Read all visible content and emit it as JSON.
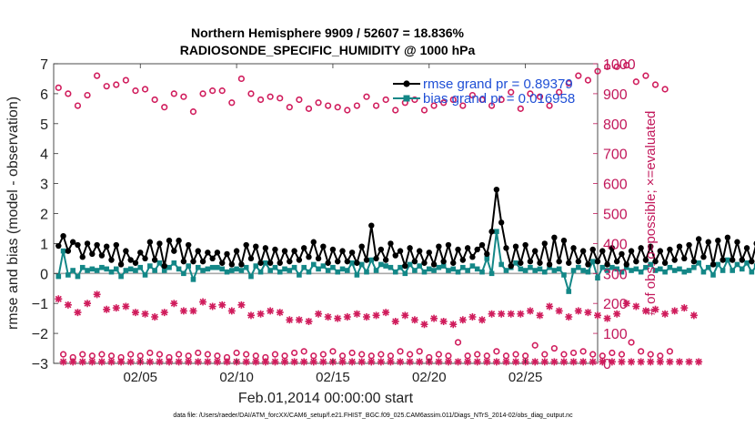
{
  "chart_data": {
    "type": "line",
    "title": "Northern Hemisphere 9909 / 52607 = 18.836%",
    "subtitle": "RADIOSONDE_SPECIFIC_HUMIDITY @ 1000 hPa",
    "xlabel": "Feb.01,2014 00:00:00 start",
    "ylabel": "rmse and bias (model - observation)",
    "ylabel_right": "# of obs: o=possible; ×=evaluated",
    "xlim": [
      0.5,
      28.75
    ],
    "ylim": [
      -3,
      7
    ],
    "ylim_right": [
      0,
      1000
    ],
    "x_ticks": [
      {
        "value": 5,
        "label": "02/05"
      },
      {
        "value": 10,
        "label": "02/10"
      },
      {
        "value": 15,
        "label": "02/15"
      },
      {
        "value": 20,
        "label": "02/20"
      },
      {
        "value": 25,
        "label": "02/25"
      }
    ],
    "y_ticks": [
      {
        "value": 7,
        "label": "7"
      },
      {
        "value": 6,
        "label": "6"
      },
      {
        "value": 5,
        "label": "5"
      },
      {
        "value": 4,
        "label": "4"
      },
      {
        "value": 3,
        "label": "3"
      },
      {
        "value": 2,
        "label": "2"
      },
      {
        "value": 1,
        "label": "1"
      },
      {
        "value": 0,
        "label": "0"
      },
      {
        "value": -1,
        "label": "−1"
      },
      {
        "value": -2,
        "label": "−2"
      },
      {
        "value": -3,
        "label": "−3"
      }
    ],
    "y_ticks_right": [
      {
        "value": 1000,
        "label": "1000"
      },
      {
        "value": 900,
        "label": "900"
      },
      {
        "value": 800,
        "label": "800"
      },
      {
        "value": 700,
        "label": "700"
      },
      {
        "value": 600,
        "label": "600"
      },
      {
        "value": 500,
        "label": "500"
      },
      {
        "value": 400,
        "label": "400"
      },
      {
        "value": 300,
        "label": "300"
      },
      {
        "value": 200,
        "label": "200"
      },
      {
        "value": 100,
        "label": "100"
      },
      {
        "value": 0,
        "label": "0"
      }
    ],
    "x_start": 0.75,
    "x_step": 0.25,
    "series": [
      {
        "name": "rmse grand pr = 0.89379",
        "axis": "left",
        "color": "#000000",
        "marker": "filled-circle",
        "values": [
          0.92,
          1.25,
          0.75,
          1.05,
          0.95,
          0.55,
          1.0,
          0.65,
          0.95,
          0.6,
          0.9,
          0.45,
          0.95,
          0.3,
          0.75,
          0.45,
          0.35,
          0.7,
          0.5,
          1.05,
          0.45,
          1.0,
          0.25,
          1.1,
          0.75,
          1.1,
          0.4,
          0.95,
          0.4,
          0.75,
          0.4,
          0.7,
          0.5,
          0.7,
          0.35,
          0.65,
          0.3,
          0.75,
          0.3,
          0.95,
          0.5,
          0.9,
          0.35,
          0.85,
          0.35,
          0.8,
          0.35,
          0.75,
          0.4,
          0.75,
          0.45,
          0.85,
          0.55,
          1.05,
          0.5,
          0.9,
          0.35,
          0.8,
          0.4,
          0.75,
          0.4,
          0.7,
          0.35,
          0.9,
          0.45,
          1.6,
          0.5,
          0.8,
          0.45,
          1.0,
          0.6,
          0.75,
          0.25,
          0.85,
          0.4,
          0.75,
          0.35,
          0.7,
          0.3,
          0.9,
          0.4,
          0.95,
          0.35,
          0.8,
          0.45,
          0.85,
          0.55,
          0.8,
          0.95,
          0.65,
          1.4,
          2.8,
          1.7,
          0.85,
          0.25,
          0.9,
          0.35,
          0.95,
          0.4,
          0.75,
          0.35,
          1.0,
          0.3,
          1.2,
          0.4,
          1.1,
          0.35,
          0.85,
          0.4,
          0.75,
          0.3,
          0.8,
          0.4,
          0.75,
          0.3,
          0.85,
          0.4,
          0.65,
          0.3,
          0.75,
          0.4,
          0.85,
          0.45,
          0.9,
          0.4,
          0.75,
          0.35,
          0.8,
          0.45,
          0.9,
          0.5,
          0.95,
          0.4,
          1.15,
          0.55,
          1.05,
          0.3,
          1.1,
          0.45,
          1.2,
          0.45,
          1.05,
          0.45,
          0.85,
          0.4,
          1.0,
          0.3,
          0.9,
          0.45,
          0.85,
          0.35,
          0.9,
          0.2
        ]
      },
      {
        "name": "bias grand pr = 0.016958",
        "axis": "left",
        "color": "#138787",
        "marker": "filled-square",
        "values": [
          -0.1,
          0.75,
          -0.05,
          0.1,
          -0.1,
          0.2,
          0.1,
          0.15,
          0.1,
          0.2,
          0.15,
          0.05,
          0.15,
          -0.1,
          0.1,
          0.15,
          0.1,
          0.2,
          -0.05,
          0.25,
          0.1,
          0.35,
          0.1,
          0.2,
          0.35,
          0.15,
          0.0,
          0.25,
          -0.2,
          0.2,
          0.1,
          0.15,
          0.2,
          0.2,
          0.15,
          0.05,
          0.1,
          0.15,
          0.1,
          0.2,
          -0.1,
          0.25,
          0.05,
          0.35,
          0.1,
          0.2,
          0.05,
          0.15,
          0.1,
          0.2,
          -0.05,
          0.2,
          0.05,
          0.3,
          0.15,
          0.25,
          0.1,
          0.2,
          0.05,
          0.15,
          0.1,
          0.35,
          -0.05,
          0.3,
          0.05,
          0.45,
          0.1,
          0.3,
          0.25,
          0.2,
          0.05,
          0.2,
          0.0,
          0.3,
          0.1,
          0.25,
          0.05,
          0.15,
          0.1,
          0.2,
          0.25,
          0.1,
          0.15,
          0.05,
          0.2,
          0.1,
          0.25,
          0.15,
          0.05,
          0.5,
          0.0,
          1.4,
          0.3,
          0.1,
          0.2,
          0.35,
          0.15,
          0.1,
          0.2,
          0.1,
          0.15,
          0.05,
          0.2,
          0.1,
          0.15,
          -0.05,
          -0.6,
          0.1,
          0.2,
          0.1,
          0.05,
          0.4,
          -0.15,
          0.2,
          0.1,
          0.2,
          0.15,
          0.05,
          0.2,
          0.1,
          0.15,
          0.05,
          0.2,
          0.3,
          0.1,
          0.15,
          0.05,
          0.2,
          0.1,
          0.15,
          0.05,
          0.1,
          0.2,
          0.35,
          0.05,
          0.2,
          -0.05,
          0.3,
          0.1,
          0.45,
          0.1,
          0.3,
          0.15,
          0.35,
          0.05,
          0.25,
          0.1,
          0.3,
          0.05,
          0.5,
          0.05,
          0.3,
          -0.1
        ]
      },
      {
        "name": "possible",
        "axis": "right",
        "color": "#d01c5c",
        "marker": "open-circle",
        "values": [
          920,
          30,
          900,
          20,
          860,
          30,
          895,
          25,
          960,
          30,
          925,
          25,
          930,
          20,
          945,
          30,
          910,
          25,
          915,
          35,
          880,
          30,
          855,
          20,
          900,
          30,
          890,
          25,
          840,
          35,
          900,
          30,
          910,
          25,
          910,
          20,
          870,
          35,
          950,
          30,
          900,
          25,
          880,
          20,
          890,
          30,
          885,
          25,
          855,
          35,
          880,
          40,
          850,
          25,
          870,
          30,
          860,
          40,
          855,
          25,
          845,
          35,
          860,
          30,
          890,
          25,
          860,
          30,
          880,
          25,
          845,
          40,
          870,
          30,
          880,
          40,
          845,
          20,
          860,
          30,
          870,
          25,
          880,
          70,
          860,
          25,
          895,
          30,
          880,
          25,
          860,
          40,
          880,
          25,
          905,
          30,
          850,
          25,
          900,
          60,
          890,
          30,
          860,
          50,
          905,
          30,
          935,
          35,
          960,
          40,
          945,
          30,
          975,
          25,
          990,
          35,
          990,
          30,
          995,
          70,
          940,
          40,
          960,
          30,
          930,
          25,
          915,
          40
        ]
      },
      {
        "name": "evaluated",
        "axis": "right",
        "color": "#d01c5c",
        "marker": "asterisk",
        "values": [
          215,
          5,
          195,
          5,
          170,
          5,
          200,
          5,
          230,
          5,
          180,
          5,
          185,
          5,
          190,
          5,
          170,
          5,
          165,
          5,
          155,
          5,
          170,
          5,
          200,
          5,
          175,
          5,
          175,
          5,
          205,
          5,
          190,
          5,
          195,
          5,
          175,
          5,
          195,
          5,
          160,
          5,
          165,
          5,
          175,
          5,
          170,
          5,
          145,
          5,
          145,
          5,
          140,
          5,
          165,
          5,
          155,
          5,
          150,
          5,
          155,
          5,
          165,
          5,
          155,
          5,
          160,
          5,
          170,
          5,
          140,
          5,
          160,
          5,
          145,
          5,
          130,
          5,
          150,
          5,
          140,
          5,
          130,
          5,
          145,
          5,
          155,
          5,
          145,
          5,
          165,
          5,
          165,
          5,
          165,
          5,
          165,
          5,
          175,
          5,
          160,
          5,
          190,
          5,
          175,
          5,
          155,
          5,
          175,
          5,
          170,
          5,
          160,
          5,
          150,
          5,
          165,
          5,
          200,
          5,
          190,
          5,
          175,
          5,
          180,
          5,
          165,
          5,
          175,
          5,
          185,
          5,
          160,
          5
        ]
      }
    ],
    "zero_line": 0,
    "legend_position": "top-right",
    "footnote": "data file: /Users/raeder/DAI/ATM_forcXX/CAM6_setup/f.e21.FHIST_BGC.f09_025.CAM6assim.011/Diags_NTrS_2014-02/obs_diag_output.nc"
  }
}
